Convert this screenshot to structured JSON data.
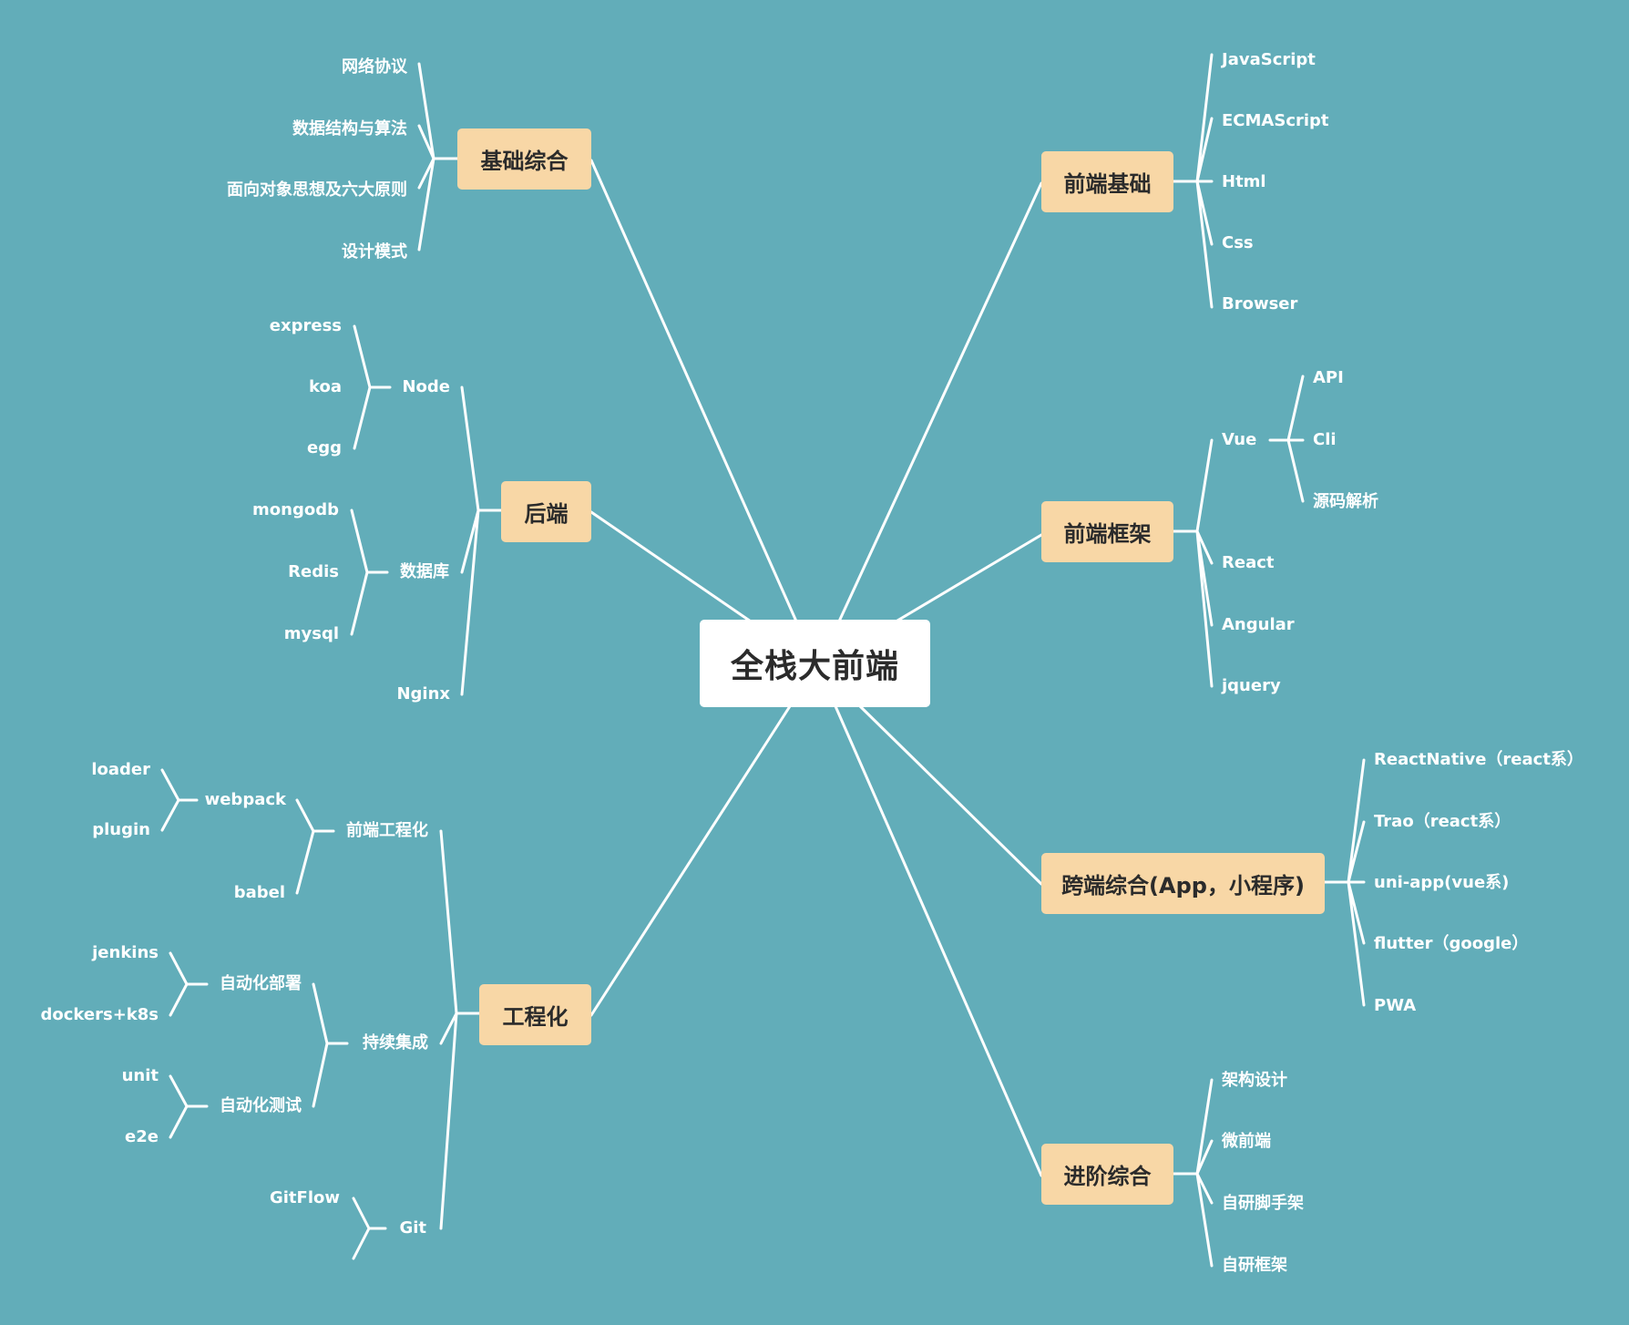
{
  "root": {
    "label": "全栈大前端"
  },
  "branches": {
    "jichu": {
      "label": "基础综合",
      "items": [
        "网络协议",
        "数据结构与算法",
        "面向对象思想及六大原则",
        "设计模式"
      ]
    },
    "houduan": {
      "label": "后端",
      "node": {
        "label": "Node",
        "items": [
          "express",
          "koa",
          "egg"
        ]
      },
      "db": {
        "label": "数据库",
        "items": [
          "mongodb",
          "Redis",
          "mysql"
        ]
      },
      "nginx": "Nginx"
    },
    "gongcheng": {
      "label": "工程化",
      "fe": {
        "label": "前端工程化",
        "webpack": {
          "label": "webpack",
          "items": [
            "loader",
            "plugin"
          ]
        },
        "babel": "babel"
      },
      "ci": {
        "label": "持续集成",
        "deploy": {
          "label": "自动化部署",
          "items": [
            "jenkins",
            "dockers+k8s"
          ]
        },
        "test": {
          "label": "自动化测试",
          "items": [
            "unit",
            "e2e"
          ]
        }
      },
      "git": {
        "label": "Git",
        "items": [
          "GitFlow"
        ]
      }
    },
    "qdjc": {
      "label": "前端基础",
      "items": [
        "JavaScript",
        "ECMAScript",
        "Html",
        "Css",
        "Browser"
      ]
    },
    "qdkj": {
      "label": "前端框架",
      "vue": {
        "label": "Vue",
        "items": [
          "API",
          "Cli",
          "源码解析"
        ]
      },
      "items": [
        "React",
        "Angular",
        "jquery"
      ]
    },
    "kuaduan": {
      "label": "跨端综合(App，小程序)",
      "items": [
        "ReactNative（react系）",
        "Trao（react系）",
        "uni-app(vue系)",
        "flutter（google）",
        "PWA"
      ]
    },
    "jinjie": {
      "label": "进阶综合",
      "items": [
        "架构设计",
        "微前端",
        "自研脚手架",
        "自研框架"
      ]
    }
  }
}
